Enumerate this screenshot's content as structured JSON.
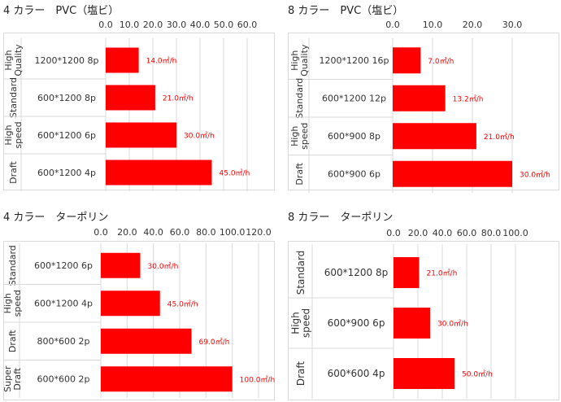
{
  "chart_data": [
    {
      "type": "bar",
      "orientation": "horizontal",
      "title": "4 カラー　PVC（塩ビ）",
      "groups": [
        "High\nQuality",
        "Standard",
        "High\nspeed",
        "Draft"
      ],
      "categories": [
        "1200*1200 8p",
        "600*1200 8p",
        "600*1200 6p",
        "600*1200 4p"
      ],
      "values": [
        14.0,
        21.0,
        30.0,
        45.0
      ],
      "data_labels": [
        "14.0㎡/h",
        "21.0㎡/h",
        "30.0㎡/h",
        "45.0㎡/h"
      ],
      "xlim": [
        0,
        60
      ],
      "ticks": [
        "0.0",
        "10.0",
        "20.0",
        "30.0",
        "40.0",
        "50.0",
        "60.0"
      ],
      "xlabel": "",
      "ylabel": "",
      "bar_color": "#ff0000",
      "grid": true,
      "legend": "none"
    },
    {
      "type": "bar",
      "orientation": "horizontal",
      "title": "8 カラー　PVC（塩ビ）",
      "groups": [
        "High\nQuality",
        "Standard",
        "High\nspeed",
        "Draft"
      ],
      "categories": [
        "1200*1200 16p",
        "600*1200 12p",
        "600*900 8p",
        "600*900 6p"
      ],
      "values": [
        7.0,
        13.2,
        21.0,
        30.0
      ],
      "data_labels": [
        "7.0㎡/h",
        "13.2㎡/h",
        "21.0㎡/h",
        "30.0㎡/h"
      ],
      "xlim": [
        0,
        30
      ],
      "ticks": [
        "0.0",
        "10.0",
        "20.0",
        "30.0"
      ],
      "xlabel": "",
      "ylabel": "",
      "bar_color": "#ff0000",
      "grid": true,
      "legend": "none"
    },
    {
      "type": "bar",
      "orientation": "horizontal",
      "title": "4 カラー　ターポリン",
      "groups": [
        "Standard",
        "High\nspeed",
        "Draft",
        "Super\nDraft"
      ],
      "categories": [
        "600*1200 6p",
        "600*1200 4p",
        "800*600 2p",
        "600*600 2p"
      ],
      "values": [
        30.0,
        45.0,
        69.0,
        100.0
      ],
      "data_labels": [
        "30.0㎡/h",
        "45.0㎡/h",
        "69.0㎡/h",
        "100.0㎡/h"
      ],
      "xlim": [
        0,
        120
      ],
      "ticks": [
        "0.0",
        "20.0",
        "40.0",
        "60.0",
        "80.0",
        "100.0",
        "120.0"
      ],
      "xlabel": "",
      "ylabel": "",
      "bar_color": "#ff0000",
      "grid": true,
      "legend": "none"
    },
    {
      "type": "bar",
      "orientation": "horizontal",
      "title": "8 カラー　ターポリン",
      "groups": [
        "Standard",
        "High\nspeed",
        "Draft"
      ],
      "categories": [
        "600*1200 8p",
        "600*900 6p",
        "600*600 4p"
      ],
      "values": [
        21.0,
        30.0,
        50.0
      ],
      "data_labels": [
        "21.0㎡/h",
        "30.0㎡/h",
        "50.0㎡/h"
      ],
      "xlim": [
        0,
        100
      ],
      "ticks": [
        "0.0",
        "20.0",
        "40.0",
        "60.0",
        "80.0",
        "100.0"
      ],
      "xlabel": "",
      "ylabel": "",
      "bar_color": "#ff0000",
      "grid": true,
      "legend": "none"
    }
  ]
}
